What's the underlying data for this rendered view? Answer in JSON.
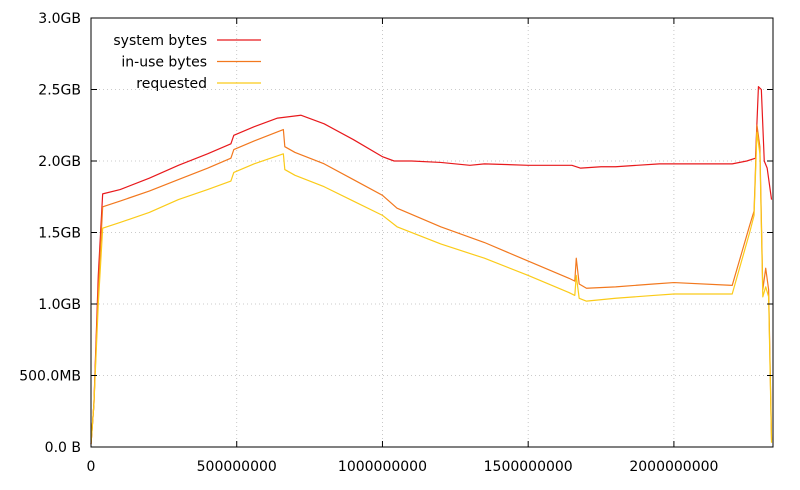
{
  "chart_data": {
    "type": "line",
    "title": "",
    "xlabel": "",
    "ylabel": "",
    "xlim": [
      0,
      2340000000
    ],
    "ylim": [
      0,
      3.0
    ],
    "x_ticks": [
      {
        "value": 0,
        "label": "0"
      },
      {
        "value": 500000000,
        "label": "500000000"
      },
      {
        "value": 1000000000,
        "label": "1000000000"
      },
      {
        "value": 1500000000,
        "label": "1500000000"
      },
      {
        "value": 2000000000,
        "label": "2000000000"
      }
    ],
    "y_ticks": [
      {
        "value": 0.0,
        "label": "0.0 B"
      },
      {
        "value": 0.5,
        "label": "500.0MB"
      },
      {
        "value": 1.0,
        "label": "1.0GB"
      },
      {
        "value": 1.5,
        "label": "1.5GB"
      },
      {
        "value": 2.0,
        "label": "2.0GB"
      },
      {
        "value": 2.5,
        "label": "2.5GB"
      },
      {
        "value": 3.0,
        "label": "3.0GB"
      }
    ],
    "grid": true,
    "legend_position": "top-left",
    "series": [
      {
        "name": "system bytes",
        "color": "#e8191c",
        "points": [
          [
            0,
            0.02
          ],
          [
            10000000,
            0.3
          ],
          [
            25000000,
            1.2
          ],
          [
            40000000,
            1.77
          ],
          [
            100000000,
            1.8
          ],
          [
            200000000,
            1.88
          ],
          [
            300000000,
            1.97
          ],
          [
            400000000,
            2.05
          ],
          [
            480000000,
            2.12
          ],
          [
            490000000,
            2.18
          ],
          [
            560000000,
            2.24
          ],
          [
            640000000,
            2.3
          ],
          [
            720000000,
            2.32
          ],
          [
            800000000,
            2.26
          ],
          [
            900000000,
            2.15
          ],
          [
            1000000000,
            2.03
          ],
          [
            1040000000,
            2.0
          ],
          [
            1100000000,
            2.0
          ],
          [
            1200000000,
            1.99
          ],
          [
            1300000000,
            1.97
          ],
          [
            1350000000,
            1.98
          ],
          [
            1500000000,
            1.97
          ],
          [
            1650000000,
            1.97
          ],
          [
            1680000000,
            1.95
          ],
          [
            1750000000,
            1.96
          ],
          [
            1800000000,
            1.96
          ],
          [
            1950000000,
            1.98
          ],
          [
            2200000000,
            1.98
          ],
          [
            2250000000,
            2.0
          ],
          [
            2280000000,
            2.02
          ],
          [
            2290000000,
            2.52
          ],
          [
            2300000000,
            2.5
          ],
          [
            2310000000,
            2.0
          ],
          [
            2320000000,
            1.95
          ],
          [
            2335000000,
            1.73
          ]
        ]
      },
      {
        "name": "in-use bytes",
        "color": "#f2781e",
        "points": [
          [
            0,
            0.02
          ],
          [
            10000000,
            0.3
          ],
          [
            25000000,
            1.1
          ],
          [
            40000000,
            1.68
          ],
          [
            100000000,
            1.72
          ],
          [
            200000000,
            1.79
          ],
          [
            300000000,
            1.87
          ],
          [
            400000000,
            1.95
          ],
          [
            480000000,
            2.02
          ],
          [
            490000000,
            2.08
          ],
          [
            560000000,
            2.14
          ],
          [
            660000000,
            2.22
          ],
          [
            665000000,
            2.1
          ],
          [
            700000000,
            2.06
          ],
          [
            800000000,
            1.98
          ],
          [
            900000000,
            1.87
          ],
          [
            1000000000,
            1.76
          ],
          [
            1050000000,
            1.67
          ],
          [
            1200000000,
            1.54
          ],
          [
            1350000000,
            1.43
          ],
          [
            1500000000,
            1.3
          ],
          [
            1640000000,
            1.18
          ],
          [
            1660000000,
            1.16
          ],
          [
            1665000000,
            1.32
          ],
          [
            1675000000,
            1.14
          ],
          [
            1700000000,
            1.11
          ],
          [
            1800000000,
            1.12
          ],
          [
            1930000000,
            1.14
          ],
          [
            2000000000,
            1.15
          ],
          [
            2200000000,
            1.13
          ],
          [
            2260000000,
            1.55
          ],
          [
            2275000000,
            1.65
          ],
          [
            2285000000,
            2.25
          ],
          [
            2295000000,
            2.1
          ],
          [
            2305000000,
            1.1
          ],
          [
            2315000000,
            1.25
          ],
          [
            2325000000,
            1.1
          ],
          [
            2335000000,
            0.05
          ]
        ]
      },
      {
        "name": "requested",
        "color": "#fbcb19",
        "points": [
          [
            0,
            0.02
          ],
          [
            10000000,
            0.3
          ],
          [
            25000000,
            1.0
          ],
          [
            40000000,
            1.53
          ],
          [
            100000000,
            1.57
          ],
          [
            200000000,
            1.64
          ],
          [
            300000000,
            1.73
          ],
          [
            400000000,
            1.8
          ],
          [
            480000000,
            1.86
          ],
          [
            490000000,
            1.92
          ],
          [
            560000000,
            1.98
          ],
          [
            660000000,
            2.05
          ],
          [
            665000000,
            1.94
          ],
          [
            700000000,
            1.9
          ],
          [
            800000000,
            1.82
          ],
          [
            900000000,
            1.72
          ],
          [
            1000000000,
            1.62
          ],
          [
            1050000000,
            1.54
          ],
          [
            1200000000,
            1.42
          ],
          [
            1350000000,
            1.32
          ],
          [
            1500000000,
            1.2
          ],
          [
            1640000000,
            1.08
          ],
          [
            1660000000,
            1.06
          ],
          [
            1665000000,
            1.2
          ],
          [
            1675000000,
            1.04
          ],
          [
            1700000000,
            1.02
          ],
          [
            1800000000,
            1.04
          ],
          [
            1930000000,
            1.06
          ],
          [
            2000000000,
            1.07
          ],
          [
            2200000000,
            1.07
          ],
          [
            2260000000,
            1.5
          ],
          [
            2275000000,
            1.62
          ],
          [
            2285000000,
            2.2
          ],
          [
            2295000000,
            2.05
          ],
          [
            2305000000,
            1.05
          ],
          [
            2315000000,
            1.12
          ],
          [
            2325000000,
            1.05
          ],
          [
            2335000000,
            0.03
          ]
        ]
      }
    ]
  }
}
